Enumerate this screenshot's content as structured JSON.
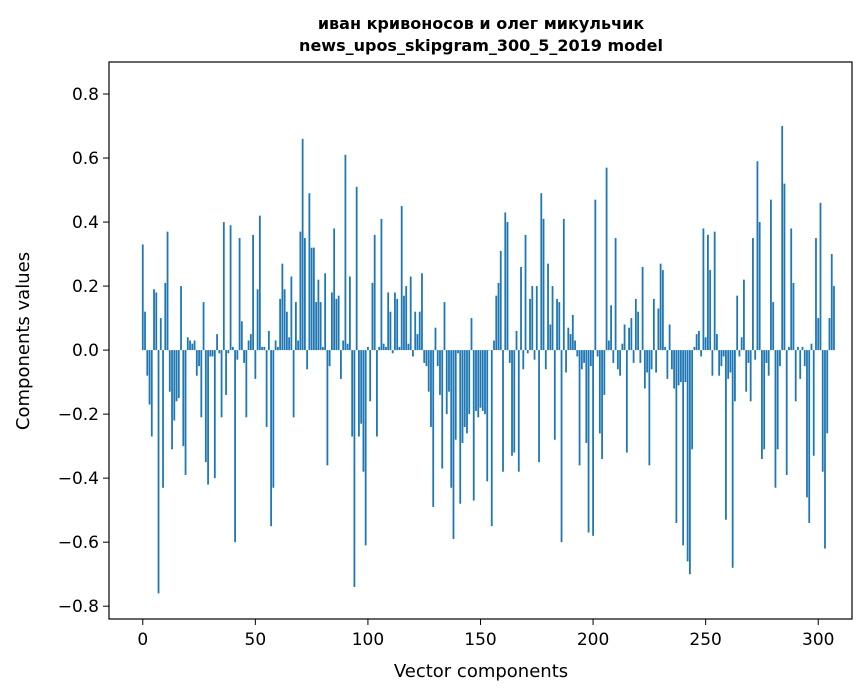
{
  "chart_data": {
    "type": "bar",
    "title_line1": "иван кривоносов и олег микульчик",
    "title_line2": "news_upos_skipgram_300_5_2019 model",
    "xlabel": "Vector components",
    "ylabel": "Components values",
    "xlim": [
      -15,
      315
    ],
    "ylim": [
      -0.84,
      0.9
    ],
    "x_ticks": [
      0,
      50,
      100,
      150,
      200,
      250,
      300
    ],
    "y_ticks": [
      -0.8,
      -0.6,
      -0.4,
      -0.2,
      0.0,
      0.2,
      0.4,
      0.6,
      0.8
    ],
    "y_tick_labels": [
      "−0.8",
      "−0.6",
      "−0.4",
      "−0.2",
      "0.0",
      "0.2",
      "0.4",
      "0.6",
      "0.8"
    ],
    "bar_color": "#1f77b4",
    "grid": false,
    "values": [
      0.33,
      0.12,
      -0.08,
      -0.17,
      -0.27,
      0.19,
      0.18,
      -0.76,
      0.1,
      -0.43,
      0.21,
      0.37,
      -0.13,
      -0.31,
      -0.22,
      -0.16,
      -0.15,
      0.2,
      -0.3,
      -0.39,
      0.04,
      0.03,
      0.02,
      0.03,
      -0.08,
      -0.05,
      -0.21,
      0.15,
      -0.35,
      -0.42,
      -0.02,
      -0.02,
      -0.4,
      0.05,
      -0.01,
      -0.21,
      0.4,
      -0.14,
      -0.01,
      0.39,
      0.01,
      -0.6,
      -0.03,
      0.35,
      0.09,
      -0.04,
      -0.21,
      0.03,
      0.05,
      0.36,
      -0.09,
      0.19,
      0.42,
      0.01,
      0.01,
      -0.24,
      0.06,
      -0.55,
      -0.43,
      0.03,
      0.01,
      0.16,
      0.27,
      0.19,
      0.12,
      0.04,
      0.23,
      -0.21,
      0.15,
      0.03,
      0.37,
      0.66,
      0.35,
      -0.06,
      0.49,
      0.32,
      0.32,
      0.15,
      0.22,
      0.15,
      0.01,
      0.24,
      -0.36,
      -0.05,
      0.18,
      0.38,
      0.16,
      0.17,
      -0.09,
      0.03,
      0.61,
      0.02,
      0.23,
      -0.27,
      -0.74,
      0.51,
      -0.27,
      -0.23,
      -0.38,
      -0.61,
      0.01,
      -0.16,
      0.21,
      0.36,
      -0.27,
      0.01,
      0.41,
      0.02,
      0.01,
      0.18,
      0.12,
      -0.01,
      0.18,
      0.16,
      0.01,
      0.45,
      0.17,
      0.2,
      0.02,
      0.23,
      -0.02,
      0.12,
      0.05,
      0.12,
      0.24,
      -0.04,
      -0.05,
      -0.13,
      -0.24,
      -0.49,
      0.07,
      -0.05,
      -0.14,
      -0.37,
      0.15,
      -0.2,
      -0.13,
      -0.43,
      -0.59,
      -0.28,
      -0.01,
      -0.48,
      -0.29,
      -0.24,
      -0.26,
      -0.2,
      0.1,
      -0.47,
      -0.19,
      -0.21,
      -0.18,
      -0.19,
      -0.2,
      -0.41,
      0.0,
      -0.55,
      0.03,
      0.17,
      0.21,
      0.31,
      -0.38,
      0.43,
      0.4,
      -0.04,
      -0.33,
      -0.32,
      0.06,
      -0.38,
      0.26,
      -0.06,
      0.36,
      -0.01,
      0.16,
      0.2,
      -0.03,
      0.2,
      -0.35,
      0.49,
      0.41,
      -0.06,
      0.27,
      0.08,
      0.2,
      -0.28,
      0.16,
      0.15,
      -0.6,
      0.41,
      -0.07,
      0.07,
      0.05,
      0.11,
      0.03,
      -0.02,
      -0.36,
      -0.06,
      -0.04,
      -0.29,
      -0.57,
      -0.05,
      -0.58,
      0.47,
      -0.02,
      -0.26,
      -0.34,
      -0.14,
      0.57,
      0.03,
      0.14,
      -0.04,
      0.35,
      -0.06,
      -0.08,
      0.02,
      0.08,
      -0.32,
      0.07,
      0.1,
      -0.04,
      0.16,
      0.12,
      -0.04,
      0.26,
      -0.12,
      -0.07,
      -0.36,
      -0.06,
      0.16,
      -0.07,
      0.13,
      0.27,
      0.25,
      0.01,
      -0.09,
      0.08,
      -0.06,
      -0.12,
      -0.54,
      -0.11,
      -0.1,
      -0.61,
      -0.1,
      -0.66,
      -0.7,
      -0.31,
      0.01,
      0.05,
      0.06,
      -0.02,
      0.38,
      0.04,
      0.36,
      0.25,
      -0.08,
      0.37,
      0.05,
      -0.08,
      -0.05,
      -0.02,
      -0.53,
      -0.09,
      -0.07,
      -0.68,
      -0.16,
      0.17,
      -0.02,
      0.04,
      0.22,
      -0.13,
      -0.04,
      -0.16,
      0.35,
      -0.03,
      0.59,
      0.4,
      -0.34,
      -0.31,
      -0.04,
      -0.08,
      0.47,
      0.15,
      -0.43,
      -0.31,
      -0.05,
      0.7,
      0.52,
      -0.39,
      0.01,
      0.38,
      0.21,
      -0.16,
      0.01,
      -0.09,
      0.01,
      -0.05,
      -0.46,
      -0.54,
      0.02,
      -0.33,
      0.35,
      0.1,
      0.46,
      -0.38,
      -0.62,
      -0.26,
      0.1,
      0.3,
      0.2
    ]
  }
}
